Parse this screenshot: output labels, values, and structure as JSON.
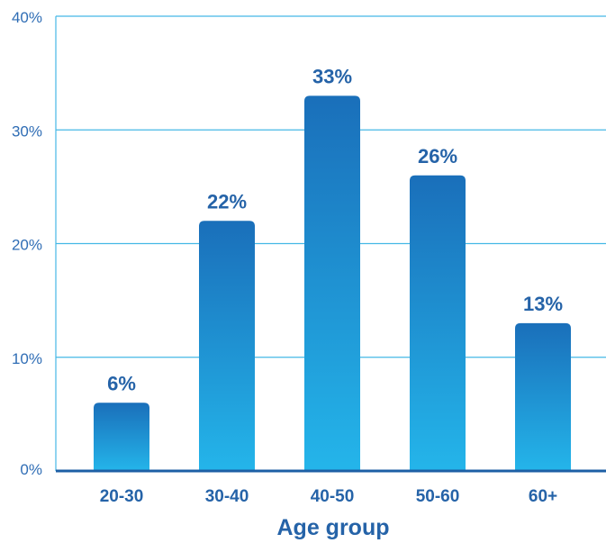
{
  "chart_data": {
    "type": "bar",
    "categories": [
      "20-30",
      "30-40",
      "40-50",
      "50-60",
      "60+"
    ],
    "values": [
      6,
      22,
      33,
      26,
      13
    ],
    "data_labels": [
      "6%",
      "22%",
      "33%",
      "26%",
      "13%"
    ],
    "title": "",
    "xlabel": "Age group",
    "ylabel": "",
    "ylim": [
      0,
      40
    ],
    "yticks": [
      0,
      10,
      20,
      30,
      40
    ],
    "ytick_labels": [
      "0%",
      "10%",
      "20%",
      "30%",
      "40%"
    ],
    "grid": true,
    "legend": "none"
  },
  "colors": {
    "bar_top": "#1a6fba",
    "bar_bottom": "#24b5ea",
    "grid": "#45b8e6",
    "axis": "#1d5fa5",
    "text": "#2563a8"
  }
}
